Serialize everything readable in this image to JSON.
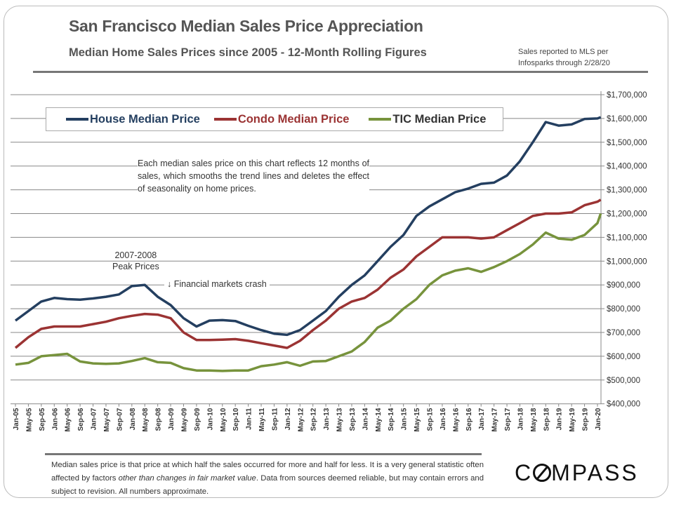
{
  "title": "San Francisco Median Sales Price Appreciation",
  "subtitle": "Median Home Sales Prices since 2005 - 12-Month Rolling Figures",
  "source_note": [
    "Sales reported to MLS per",
    "Infosparks through 2/28/20"
  ],
  "annotation": "Each median sales price on this chart reflects 12 months of sales, which smooths the trend lines and deletes the effect of seasonality on home prices.",
  "peak_label": [
    "2007-2008",
    "Peak Prices"
  ],
  "crash_label": "↓ Financial markets crash",
  "footnote_parts": [
    "Median sales price is that price at which half the sales occurred for more and half for less. It is a very general statistic often affected by factors ",
    "other than changes in fair market value",
    ". Data from sources deemed reliable, but may contain errors and subject to revision. All numbers approximate."
  ],
  "logo": "COMPASS",
  "chart_data": {
    "type": "line",
    "title": "San Francisco Median Sales Price Appreciation",
    "xlabel": "",
    "ylabel": "",
    "ylim": [
      400000,
      1700000
    ],
    "y_ticks": [
      "$400,000",
      "$500,000",
      "$600,000",
      "$700,000",
      "$800,000",
      "$900,000",
      "$1,000,000",
      "$1,100,000",
      "$1,200,000",
      "$1,300,000",
      "$1,400,000",
      "$1,500,000",
      "$1,600,000",
      "$1,700,000"
    ],
    "grid": true,
    "legend_position": "top",
    "x": [
      "Jan-05",
      "May-05",
      "Sep-05",
      "Jan-06",
      "May-06",
      "Sep-06",
      "Jan-07",
      "May-07",
      "Sep-07",
      "Jan-08",
      "May-08",
      "Sep-08",
      "Jan-09",
      "May-09",
      "Sep-09",
      "Jan-10",
      "May-10",
      "Sep-10",
      "Jan-11",
      "May-11",
      "Sep-11",
      "Jan-12",
      "May-12",
      "Sep-12",
      "Jan-13",
      "May-13",
      "Sep-13",
      "Jan-14",
      "May-14",
      "Sep-14",
      "Jan-15",
      "May-15",
      "Sep-15",
      "Jan-16",
      "May-16",
      "Sep-16",
      "Jan-17",
      "May-17",
      "Sep-17",
      "Jan-18",
      "May-18",
      "Sep-18",
      "Jan-19",
      "May-19",
      "Sep-19",
      "Jan-20",
      "Feb-20"
    ],
    "x_tick_labels": [
      "Jan-05",
      "May-05",
      "Sep-05",
      "Jan-06",
      "May-06",
      "Sep-06",
      "Jan-07",
      "May-07",
      "Sep-07",
      "Jan-08",
      "May-08",
      "Sep-08",
      "Jan-09",
      "May-09",
      "Sep-09",
      "Jan-10",
      "May-10",
      "Sep-10",
      "Jan-11",
      "May-11",
      "Sep-11",
      "Jan-12",
      "May-12",
      "Sep-12",
      "Jan-13",
      "May-13",
      "Sep-13",
      "Jan-14",
      "May-14",
      "Sep-14",
      "Jan-15",
      "May-15",
      "Sep-15",
      "Jan-16",
      "May-16",
      "Sep-16",
      "Jan-17",
      "May-17",
      "Sep-17",
      "Jan-18",
      "May-18",
      "Sep-18",
      "Jan-19",
      "May-19",
      "Sep-19",
      "Jan-20"
    ],
    "series": [
      {
        "name": "House Median Price",
        "color": "#243f60",
        "values": [
          750000,
          790000,
          830000,
          845000,
          840000,
          838000,
          843000,
          850000,
          860000,
          895000,
          900000,
          850000,
          815000,
          760000,
          725000,
          750000,
          752000,
          748000,
          728000,
          710000,
          695000,
          690000,
          710000,
          750000,
          790000,
          850000,
          900000,
          940000,
          1000000,
          1060000,
          1110000,
          1190000,
          1230000,
          1260000,
          1290000,
          1305000,
          1325000,
          1330000,
          1360000,
          1420000,
          1500000,
          1585000,
          1570000,
          1575000,
          1598000,
          1600000,
          1605000
        ]
      },
      {
        "name": "Condo Median Price",
        "color": "#9b3333",
        "values": [
          635000,
          680000,
          715000,
          725000,
          725000,
          725000,
          735000,
          745000,
          760000,
          770000,
          778000,
          775000,
          760000,
          700000,
          668000,
          668000,
          670000,
          672000,
          665000,
          655000,
          645000,
          635000,
          665000,
          710000,
          750000,
          800000,
          830000,
          845000,
          880000,
          930000,
          965000,
          1020000,
          1060000,
          1100000,
          1100000,
          1100000,
          1095000,
          1100000,
          1130000,
          1160000,
          1190000,
          1200000,
          1200000,
          1205000,
          1235000,
          1250000,
          1258000
        ]
      },
      {
        "name": "TIC Median Price",
        "color": "#77933c",
        "values": [
          565000,
          572000,
          600000,
          605000,
          610000,
          578000,
          570000,
          568000,
          570000,
          580000,
          592000,
          575000,
          572000,
          550000,
          540000,
          540000,
          538000,
          540000,
          540000,
          558000,
          565000,
          575000,
          560000,
          578000,
          580000,
          600000,
          620000,
          660000,
          720000,
          750000,
          800000,
          840000,
          900000,
          940000,
          960000,
          970000,
          955000,
          975000,
          1000000,
          1030000,
          1070000,
          1120000,
          1095000,
          1090000,
          1110000,
          1160000,
          1200000
        ]
      }
    ]
  }
}
